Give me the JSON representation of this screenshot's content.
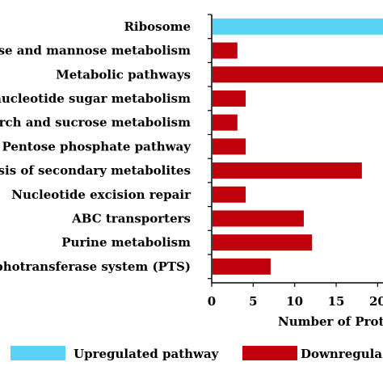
{
  "chart_data": {
    "type": "bar",
    "orientation": "horizontal",
    "categories": [
      "Ribosome",
      "ose and mannose metabolism",
      "Metabolic pathways",
      "nucleotide sugar metabolism",
      "arch and sucrose metabolism",
      "Pentose phosphate pathway",
      "esis of secondary metabolites",
      "Nucleotide excision repair",
      "ABC transporters",
      "Purine metabolism",
      "photransferase system (PTS)"
    ],
    "values": [
      23,
      3,
      23,
      4,
      3,
      4,
      18,
      4,
      11,
      12,
      7
    ],
    "bar_series": [
      0,
      1,
      1,
      1,
      1,
      1,
      1,
      1,
      1,
      1,
      1
    ],
    "series": [
      {
        "name": "Upregulated pathway",
        "color": "#5ad2f4"
      },
      {
        "name": "Downregula",
        "color": "#c0000b"
      }
    ],
    "xlabel": "Number of Prot",
    "ylabel": "",
    "x_ticks": [
      0,
      5,
      10,
      15,
      20
    ],
    "xlim": [
      0,
      23
    ],
    "grid": false,
    "legend_position": "bottom"
  }
}
